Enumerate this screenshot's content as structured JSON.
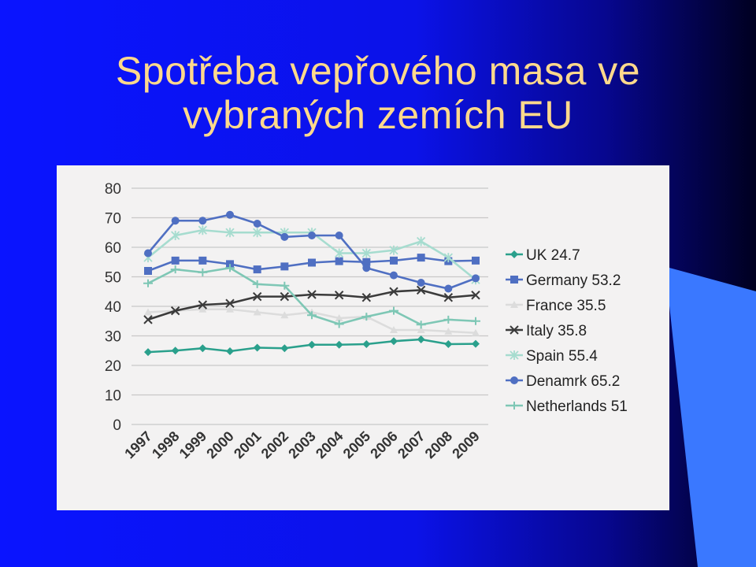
{
  "slide": {
    "title_line1": "Spotřeba vepřového masa ve",
    "title_line2": "vybraných zemích EU"
  },
  "colors": {
    "background": "#0a14ff",
    "title": "#ffd98c",
    "panel": "#f3f2f2",
    "wedge": "#3a78ff"
  },
  "chart_data": {
    "type": "line",
    "title": "",
    "xlabel": "",
    "ylabel": "",
    "ylim": [
      0,
      80
    ],
    "yticks": [
      0,
      10,
      20,
      30,
      40,
      50,
      60,
      70,
      80
    ],
    "grid": true,
    "legend_position": "right",
    "x": [
      "1997",
      "1998",
      "1999",
      "2000",
      "2001",
      "2002",
      "2003",
      "2004",
      "2005",
      "2006",
      "2007",
      "2008",
      "2009"
    ],
    "series": [
      {
        "name": "UK 24.7",
        "color": "#2aa08c",
        "marker": "diamond",
        "values": [
          24.5,
          25,
          25.8,
          24.8,
          26,
          25.8,
          27,
          27,
          27.2,
          28.2,
          28.8,
          27.2,
          27.3
        ]
      },
      {
        "name": "Germany  53.2",
        "color": "#4f6fc2",
        "marker": "square",
        "values": [
          52,
          55.5,
          55.5,
          54.3,
          52.5,
          53.5,
          54.8,
          55.3,
          55,
          55.5,
          56.5,
          55.3,
          55.5
        ]
      },
      {
        "name": "France 35.5",
        "color": "#dcdcdc",
        "marker": "triangle",
        "values": [
          38,
          38.5,
          39,
          39,
          38,
          37,
          38,
          36,
          36.5,
          32,
          32,
          31.5,
          31
        ]
      },
      {
        "name": "Italy 35.8",
        "color": "#3b3b3b",
        "marker": "x",
        "values": [
          35.5,
          38.5,
          40.5,
          41,
          43.3,
          43.3,
          44,
          43.8,
          43,
          45,
          45.5,
          43,
          43.8
        ]
      },
      {
        "name": "Spain  55.4",
        "color": "#a6dccf",
        "marker": "asterisk",
        "values": [
          56.5,
          64,
          65.8,
          65,
          65,
          65,
          65,
          58,
          58,
          59,
          62,
          56.5,
          49
        ]
      },
      {
        "name": "Denamrk 65.2",
        "color": "#4f6fc2",
        "marker": "circle",
        "values": [
          58,
          69,
          69,
          71,
          68,
          63.5,
          64,
          64,
          53,
          50.5,
          48,
          46,
          49.5
        ]
      },
      {
        "name": "Netherlands 51",
        "color": "#7ec7b5",
        "marker": "plus",
        "values": [
          47.8,
          52.5,
          51.5,
          53,
          47.5,
          47,
          37,
          34,
          36.5,
          38.5,
          33.8,
          35.5,
          35
        ]
      }
    ]
  }
}
